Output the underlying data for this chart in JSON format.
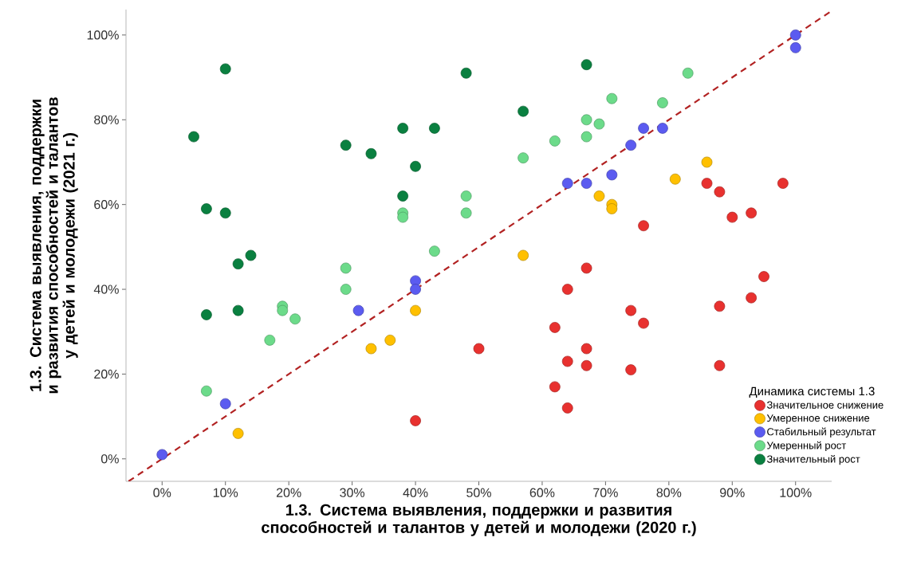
{
  "chart_data": {
    "type": "scatter",
    "xlabel": "1.3. Система выявления, поддержки и развития способностей и талантов у детей и молодежи (2020 г.)",
    "ylabel": "1.3. Система выявления, поддержки и развития способностей и талантов у детей и молодежи (2021 г.)",
    "legend_title": "Динамика системы 1.3",
    "legend": "bottom right",
    "marker": "circle",
    "xlim": [
      -5.7,
      105.7
    ],
    "ylim": [
      -5.3,
      106
    ],
    "xticks": [
      {
        "value": 0,
        "label": "0%"
      },
      {
        "value": 10,
        "label": "10%"
      },
      {
        "value": 20,
        "label": "20%"
      },
      {
        "value": 30,
        "label": "30%"
      },
      {
        "value": 40,
        "label": "40%"
      },
      {
        "value": 50,
        "label": "50%"
      },
      {
        "value": 60,
        "label": "60%"
      },
      {
        "value": 70,
        "label": "70%"
      },
      {
        "value": 80,
        "label": "80%"
      },
      {
        "value": 90,
        "label": "90%"
      },
      {
        "value": 100,
        "label": "100%"
      }
    ],
    "yticks": [
      {
        "value": 0,
        "label": "0%"
      },
      {
        "value": 20,
        "label": "20%"
      },
      {
        "value": 40,
        "label": "40%"
      },
      {
        "value": 60,
        "label": "60%"
      },
      {
        "value": 80,
        "label": "80%"
      },
      {
        "value": 100,
        "label": "100%"
      }
    ],
    "series": [
      {
        "type": "line",
        "color": "#b22222",
        "line_style": "dashed",
        "marker": "none",
        "x": [
          -5.3,
          105.7
        ],
        "values": [
          -5.3,
          105.7
        ]
      },
      {
        "name": "Значительное снижение",
        "color": "#e8312f",
        "x": [
          40,
          50,
          62,
          62,
          64,
          64,
          64,
          67,
          67,
          67,
          74,
          74,
          76,
          76,
          86,
          88,
          88,
          88,
          90,
          93,
          93,
          95,
          98
        ],
        "values": [
          9,
          26,
          31,
          17,
          40,
          23,
          12,
          45,
          26,
          22,
          35,
          21,
          55,
          32,
          65,
          63,
          36,
          22,
          57,
          58,
          38,
          43,
          65
        ]
      },
      {
        "name": "Умеренное снижение",
        "color": "#ffc000",
        "x": [
          12,
          33,
          36,
          40,
          57,
          69,
          71,
          71,
          81,
          86
        ],
        "values": [
          6,
          26,
          28,
          35,
          48,
          62,
          60,
          59,
          66,
          70
        ]
      },
      {
        "name": "Стабильный результат",
        "color": "#5b5bf0",
        "x": [
          0,
          10,
          31,
          40,
          40,
          64,
          67,
          71,
          74,
          76,
          79,
          100,
          100
        ],
        "values": [
          1,
          13,
          35,
          42,
          40,
          65,
          65,
          67,
          74,
          78,
          78,
          100,
          97
        ]
      },
      {
        "name": "Умеренный рост",
        "color": "#6cdb8a",
        "x": [
          7,
          17,
          19,
          19,
          21,
          29,
          29,
          38,
          38,
          43,
          48,
          48,
          57,
          62,
          67,
          67,
          69,
          71,
          79,
          83
        ],
        "values": [
          16,
          28,
          36,
          35,
          33,
          45,
          40,
          58,
          57,
          49,
          62,
          58,
          71,
          75,
          80,
          76,
          79,
          85,
          84,
          91
        ]
      },
      {
        "name": "Значительный рост",
        "color": "#0a8040",
        "x": [
          5,
          7,
          7,
          10,
          10,
          12,
          12,
          14,
          29,
          33,
          38,
          38,
          40,
          43,
          48,
          57,
          67
        ],
        "values": [
          76,
          59,
          34,
          92,
          58,
          46,
          35,
          48,
          74,
          72,
          78,
          62,
          69,
          78,
          91,
          82,
          93
        ]
      }
    ]
  }
}
